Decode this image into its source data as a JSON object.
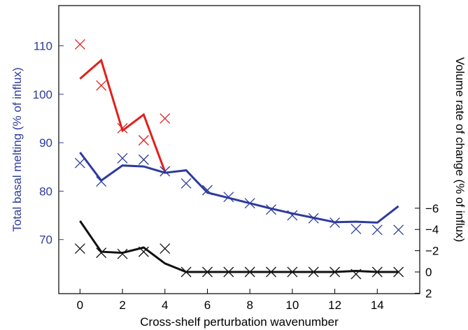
{
  "chart_data": {
    "type": "line",
    "xlabel": "Cross-shelf perturbation wavenumber",
    "ylabel_left": "Total basal melting (% of influx)",
    "ylabel_right": "Volume rate of change (% of influx)",
    "xlim": [
      -1,
      16
    ],
    "ylim_left": [
      60,
      115
    ],
    "ylim_right": [
      2,
      -8
    ],
    "xticks": [
      0,
      2,
      4,
      6,
      8,
      10,
      12,
      14
    ],
    "yticks_left": [
      70,
      80,
      90,
      100,
      110
    ],
    "yticks_right": [
      2,
      0,
      -2,
      -4,
      -6
    ],
    "colors": {
      "red": "#e0201b",
      "blue": "#2e3b9c",
      "black": "#111111"
    },
    "series": [
      {
        "axis": "left",
        "style": "line",
        "color": "red",
        "x": [
          0,
          1,
          2,
          3,
          4
        ],
        "values": [
          103.2,
          107.0,
          92.5,
          95.8,
          84.0
        ]
      },
      {
        "axis": "left",
        "style": "cross",
        "color": "red",
        "x": [
          0,
          1,
          2,
          3,
          4
        ],
        "values": [
          110.3,
          101.8,
          93.0,
          90.5,
          95.0
        ]
      },
      {
        "axis": "left",
        "style": "line",
        "color": "blue",
        "x": [
          0,
          1,
          2,
          3,
          4,
          5,
          6,
          7,
          8,
          9,
          10,
          11,
          12,
          13,
          14,
          15
        ],
        "values": [
          88.0,
          82.2,
          85.3,
          85.1,
          83.8,
          84.3,
          79.7,
          78.6,
          77.5,
          76.4,
          75.4,
          74.5,
          73.6,
          73.7,
          73.5,
          76.9
        ]
      },
      {
        "axis": "left",
        "style": "cross",
        "color": "blue",
        "x": [
          0,
          1,
          2,
          3,
          4,
          5,
          6,
          7,
          8,
          9,
          10,
          11,
          12,
          13,
          14,
          15
        ],
        "values": [
          85.8,
          82.0,
          86.8,
          86.5,
          84.1,
          81.6,
          80.2,
          78.8,
          77.5,
          76.2,
          75.0,
          74.4,
          73.5,
          72.2,
          72.0,
          72.0
        ]
      },
      {
        "axis": "right",
        "style": "line",
        "color": "black",
        "x": [
          0,
          1,
          2,
          3,
          4,
          5,
          6,
          7,
          8,
          9,
          10,
          11,
          12,
          13,
          14,
          15
        ],
        "values": [
          -4.8,
          -1.9,
          -1.8,
          -2.3,
          -0.8,
          0.0,
          0.0,
          0.0,
          0.0,
          0.0,
          0.0,
          0.0,
          0.0,
          -0.1,
          0.0,
          0.0
        ]
      },
      {
        "axis": "right",
        "style": "cross",
        "color": "black",
        "x": [
          0,
          1,
          2,
          3,
          4,
          5,
          6,
          7,
          8,
          9,
          10,
          11,
          12,
          13,
          14,
          15
        ],
        "values": [
          -2.2,
          -1.8,
          -1.7,
          -1.9,
          -2.2,
          0.0,
          0.0,
          0.0,
          0.0,
          0.0,
          0.0,
          0.0,
          0.0,
          0.2,
          0.0,
          0.0
        ]
      }
    ]
  }
}
